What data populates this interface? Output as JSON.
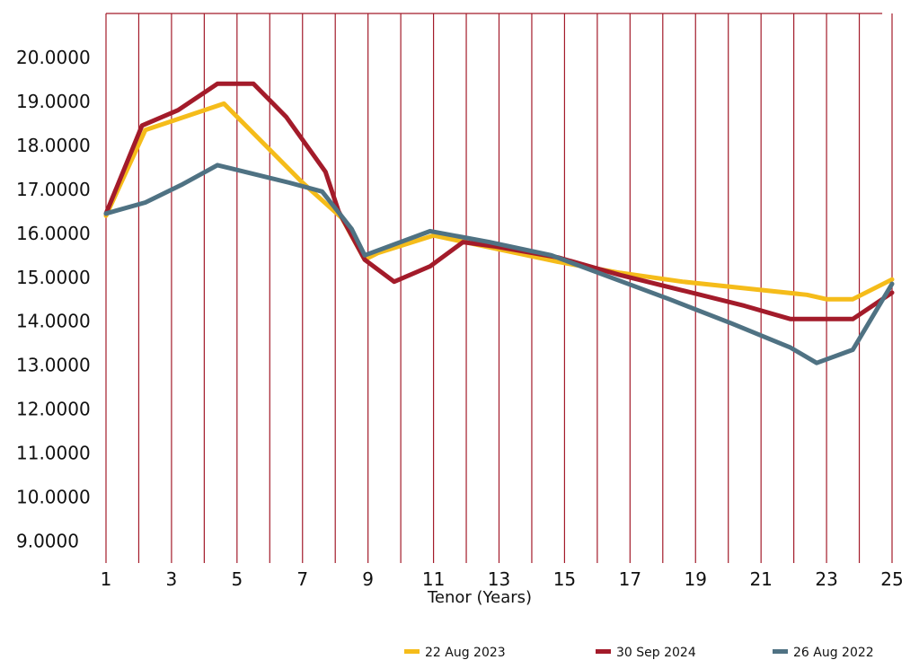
{
  "chart_data": {
    "type": "line",
    "title": "",
    "xlabel": "Tenor (Years)",
    "ylabel": "",
    "xlim": [
      1,
      25
    ],
    "ylim": [
      8.5,
      21.0
    ],
    "x_ticks": [
      1,
      3,
      5,
      7,
      9,
      11,
      13,
      15,
      17,
      19,
      21,
      23,
      25
    ],
    "y_ticks": [
      9,
      10,
      11,
      12,
      13,
      14,
      15,
      16,
      17,
      18,
      19,
      20
    ],
    "y_tick_labels": [
      "9.0000",
      "10.0000",
      "11.0000",
      "12.0000",
      "13.0000",
      "14.0000",
      "15.0000",
      "16.0000",
      "17.0000",
      "18.0000",
      "19.0000",
      "20.0000"
    ],
    "vertical_grid_x": [
      1,
      2,
      3,
      4,
      5,
      6,
      7,
      8,
      9,
      10,
      11,
      12,
      13,
      14,
      15,
      16,
      17,
      18,
      19,
      20,
      21,
      22,
      23,
      24,
      25
    ],
    "grid": true,
    "grid_color": "#a31b2a",
    "legend_position": "bottom",
    "series": [
      {
        "name": "22 Aug 2023",
        "color": "#f5bc1a",
        "x": [
          1.0,
          2.2,
          3.4,
          4.6,
          5.8,
          7.0,
          8.2,
          8.9,
          9.3,
          11.0,
          12.9,
          14.8,
          16.7,
          18.6,
          20.5,
          22.4,
          23.0,
          23.8,
          25.0
        ],
        "y": [
          16.4,
          18.35,
          18.65,
          18.95,
          18.05,
          17.15,
          16.35,
          15.4,
          15.55,
          15.95,
          15.65,
          15.35,
          15.1,
          14.9,
          14.75,
          14.6,
          14.5,
          14.5,
          14.95
        ]
      },
      {
        "name": "30 Sep 2024",
        "color": "#a31b2a",
        "x": [
          1.0,
          2.1,
          3.2,
          4.4,
          5.5,
          6.5,
          7.7,
          8.1,
          8.9,
          9.8,
          10.9,
          11.9,
          12.9,
          14.8,
          16.7,
          18.6,
          20.5,
          21.9,
          22.8,
          23.8,
          25.0
        ],
        "y": [
          16.45,
          18.45,
          18.8,
          19.4,
          19.4,
          18.65,
          17.4,
          16.5,
          15.4,
          14.9,
          15.25,
          15.8,
          15.7,
          15.45,
          15.05,
          14.7,
          14.35,
          14.05,
          14.05,
          14.05,
          14.65
        ]
      },
      {
        "name": "26 Aug 2022",
        "color": "#4f7283",
        "x": [
          1.0,
          2.2,
          3.3,
          4.4,
          5.5,
          6.6,
          7.6,
          8.5,
          8.9,
          10.9,
          12.7,
          14.6,
          16.4,
          18.2,
          20.1,
          21.9,
          22.7,
          23.8,
          25.0
        ],
        "y": [
          16.45,
          16.7,
          17.1,
          17.55,
          17.35,
          17.15,
          16.95,
          16.1,
          15.5,
          16.05,
          15.8,
          15.5,
          15.0,
          14.5,
          13.95,
          13.4,
          13.05,
          13.35,
          14.85
        ]
      }
    ]
  }
}
